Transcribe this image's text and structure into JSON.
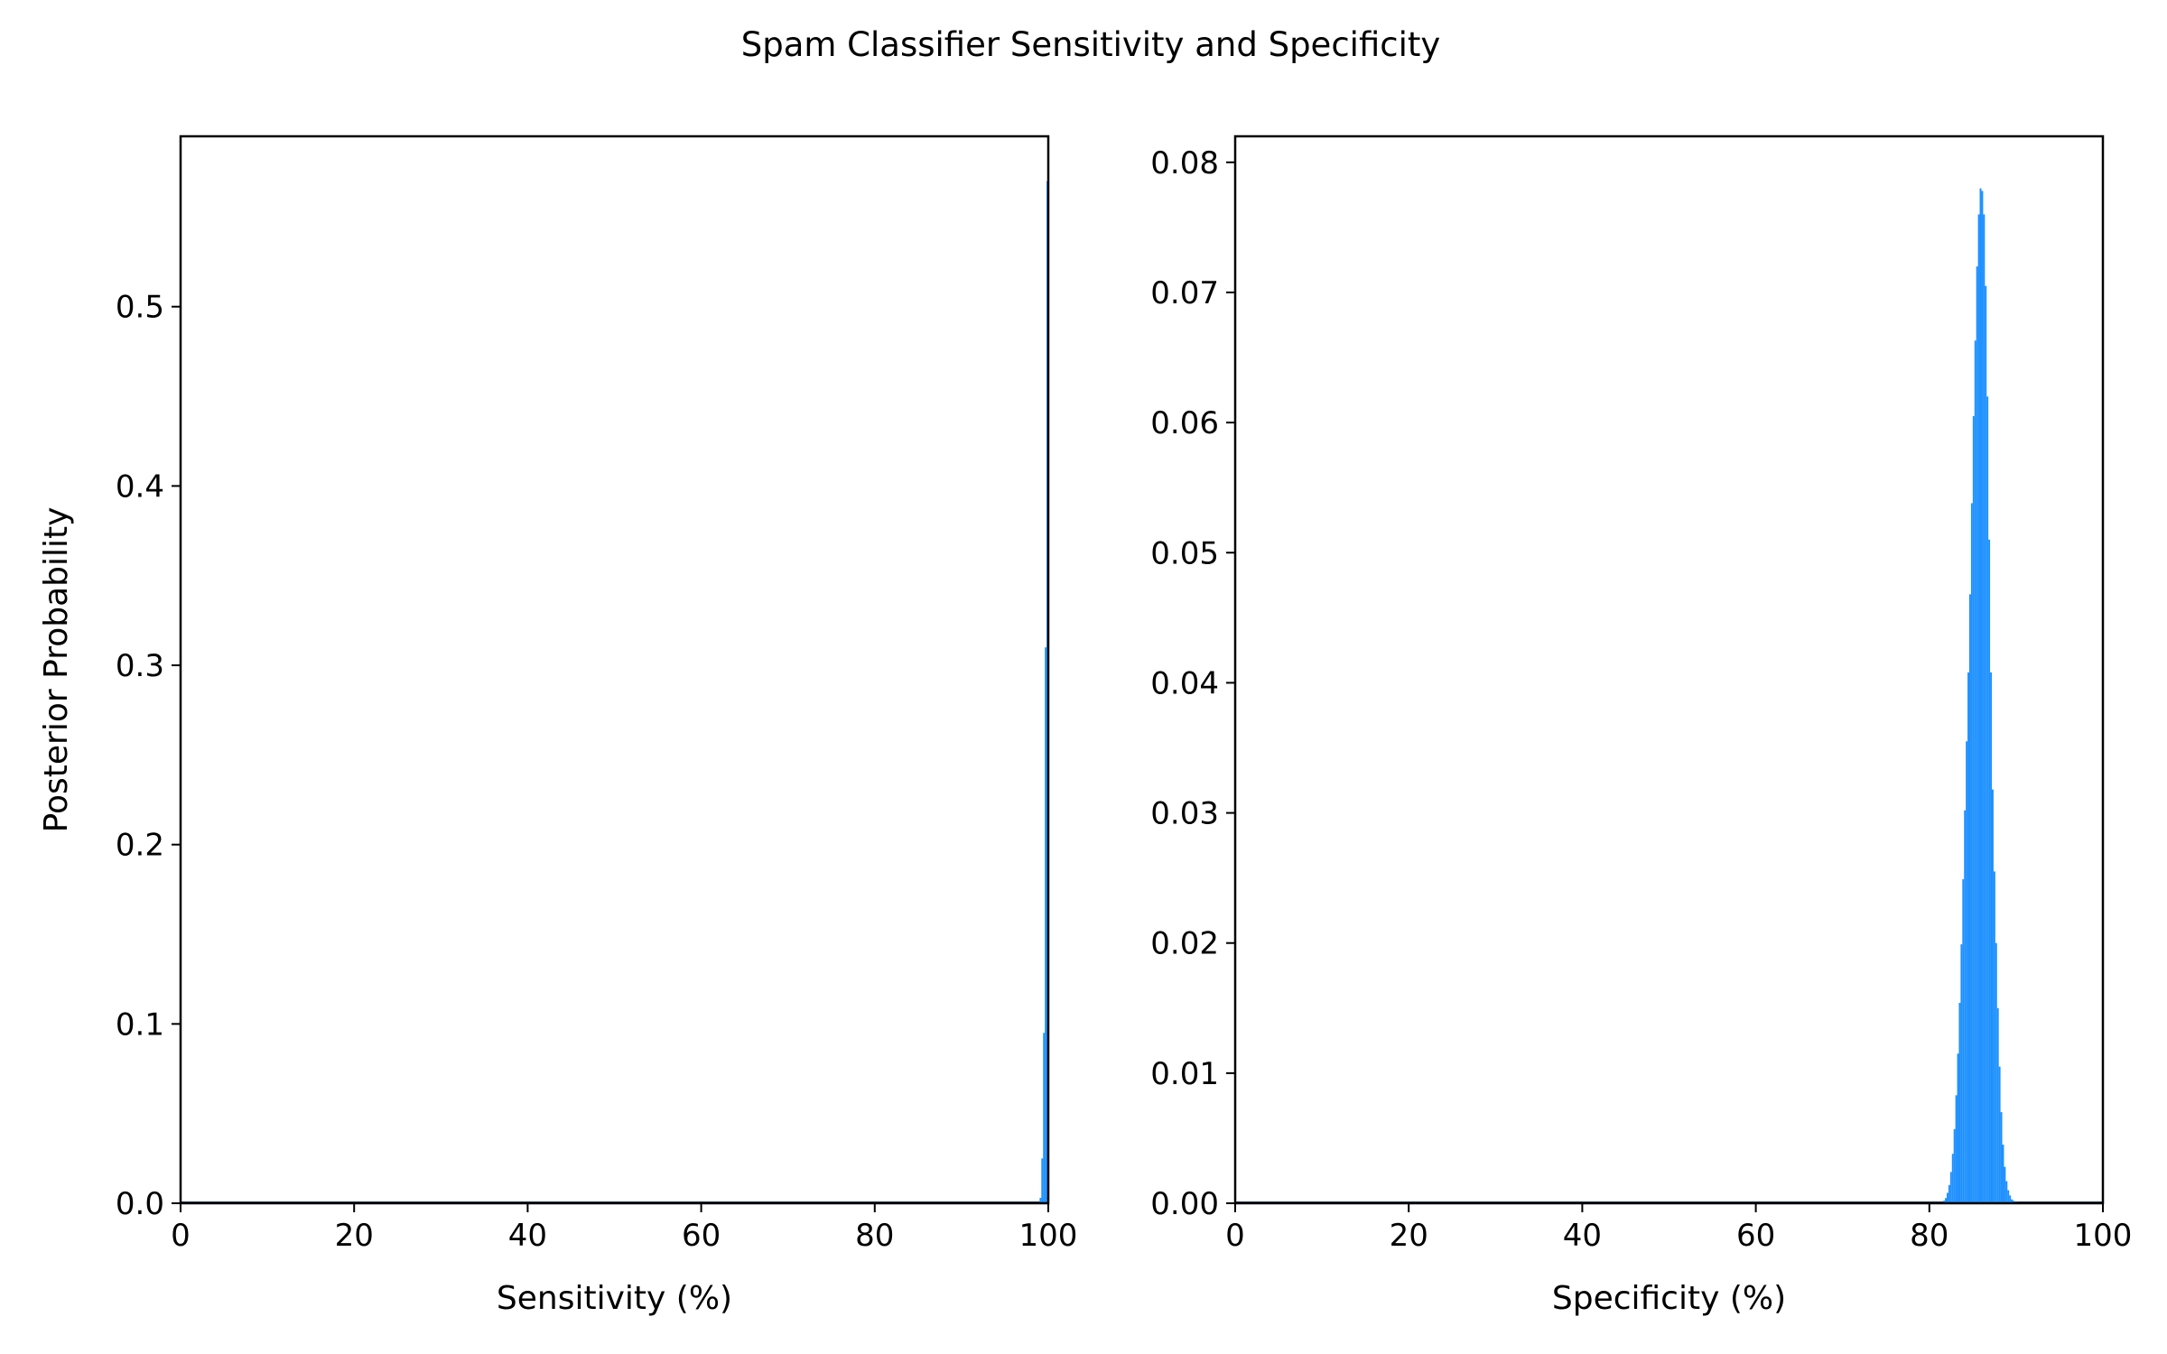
{
  "figure": {
    "title": "Spam Classifier Sensitivity and Specificity"
  },
  "chart_data": [
    {
      "type": "bar",
      "subplot": "left",
      "title": "",
      "xlabel": "Sensitivity (%)",
      "ylabel": "Posterior Probability",
      "xlim": [
        0,
        100
      ],
      "ylim": [
        0,
        0.595
      ],
      "xticks": [
        0,
        20,
        40,
        60,
        80,
        100
      ],
      "xtick_labels": [
        "0",
        "20",
        "40",
        "60",
        "80",
        "100"
      ],
      "yticks": [
        0.0,
        0.1,
        0.2,
        0.3,
        0.4,
        0.5
      ],
      "ytick_labels": [
        "0.0",
        "0.1",
        "0.2",
        "0.3",
        "0.4",
        "0.5"
      ],
      "bin_width": 0.2,
      "bar_color": "#1e90ff",
      "grid": false,
      "x": [
        99.0,
        99.2,
        99.4,
        99.6,
        99.8
      ],
      "values": [
        0.003,
        0.025,
        0.095,
        0.31,
        0.57
      ]
    },
    {
      "type": "bar",
      "subplot": "right",
      "title": "",
      "xlabel": "Specificity (%)",
      "ylabel": "",
      "xlim": [
        0,
        100
      ],
      "ylim": [
        0,
        0.082
      ],
      "xticks": [
        0,
        20,
        40,
        60,
        80,
        100
      ],
      "xtick_labels": [
        "0",
        "20",
        "40",
        "60",
        "80",
        "100"
      ],
      "yticks": [
        0.0,
        0.01,
        0.02,
        0.03,
        0.04,
        0.05,
        0.06,
        0.07,
        0.08
      ],
      "ytick_labels": [
        "0.00",
        "0.01",
        "0.02",
        "0.03",
        "0.04",
        "0.05",
        "0.06",
        "0.07",
        "0.08"
      ],
      "bin_width": 0.2,
      "bar_color": "#1e90ff",
      "grid": false,
      "x": [
        81.6,
        81.8,
        82.0,
        82.2,
        82.4,
        82.6,
        82.8,
        83.0,
        83.2,
        83.4,
        83.6,
        83.8,
        84.0,
        84.2,
        84.4,
        84.6,
        84.8,
        85.0,
        85.2,
        85.4,
        85.6,
        85.8,
        86.0,
        86.2,
        86.4,
        86.6,
        86.8,
        87.0,
        87.2,
        87.4,
        87.6,
        87.8,
        88.0,
        88.2,
        88.4,
        88.6,
        88.8,
        89.0,
        89.2,
        89.4,
        89.6,
        89.8,
        90.0
      ],
      "values": [
        0.0002,
        0.0004,
        0.0008,
        0.0014,
        0.0024,
        0.0038,
        0.0057,
        0.0083,
        0.0115,
        0.0154,
        0.0199,
        0.0249,
        0.0302,
        0.0355,
        0.0408,
        0.0468,
        0.0538,
        0.0605,
        0.0663,
        0.072,
        0.076,
        0.078,
        0.0778,
        0.076,
        0.0705,
        0.062,
        0.051,
        0.0408,
        0.0318,
        0.0255,
        0.02,
        0.015,
        0.0105,
        0.007,
        0.0045,
        0.0028,
        0.0017,
        0.001,
        0.0006,
        0.0003,
        0.0002,
        0.0001,
        0.0001
      ]
    }
  ]
}
